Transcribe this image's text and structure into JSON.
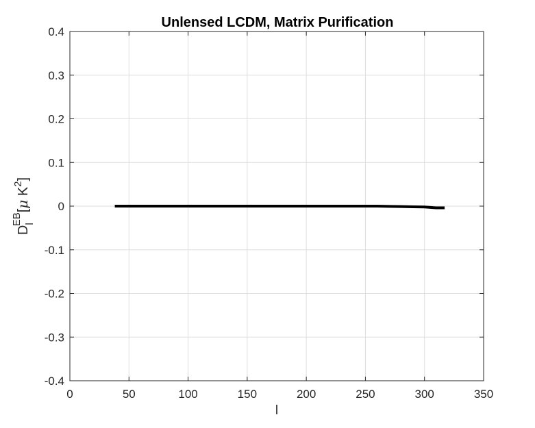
{
  "chart_data": {
    "type": "line",
    "title": "Unlensed LCDM, Matrix Purification",
    "xlabel": "l",
    "ylabel": {
      "main": "D",
      "sub": "l",
      "sup": "EB",
      "open_bracket": "[",
      "mu": "μ",
      "unit": " K",
      "unit_exp": "2",
      "close_bracket": "]"
    },
    "xlim": [
      0,
      350
    ],
    "ylim": [
      -0.4,
      0.4
    ],
    "xticks": [
      0,
      50,
      100,
      150,
      200,
      250,
      300,
      350
    ],
    "xtick_labels": [
      "0",
      "50",
      "100",
      "150",
      "200",
      "250",
      "300",
      "350"
    ],
    "yticks": [
      -0.4,
      -0.3,
      -0.2,
      -0.1,
      0,
      0.1,
      0.2,
      0.3,
      0.4
    ],
    "ytick_labels": [
      "-0.4",
      "-0.3",
      "-0.2",
      "-0.1",
      "0",
      "0.1",
      "0.2",
      "0.3",
      "0.4"
    ],
    "grid": true,
    "series": [
      {
        "color": "#000000",
        "x": [
          38,
          60,
          80,
          100,
          120,
          140,
          160,
          180,
          200,
          220,
          240,
          260,
          270,
          280,
          290,
          300,
          305,
          310,
          317
        ],
        "y": [
          0,
          0,
          0,
          0,
          0,
          0,
          0,
          0,
          0,
          0,
          0,
          0,
          -0.0005,
          -0.001,
          -0.0015,
          -0.002,
          -0.003,
          -0.004,
          -0.004
        ]
      }
    ]
  }
}
